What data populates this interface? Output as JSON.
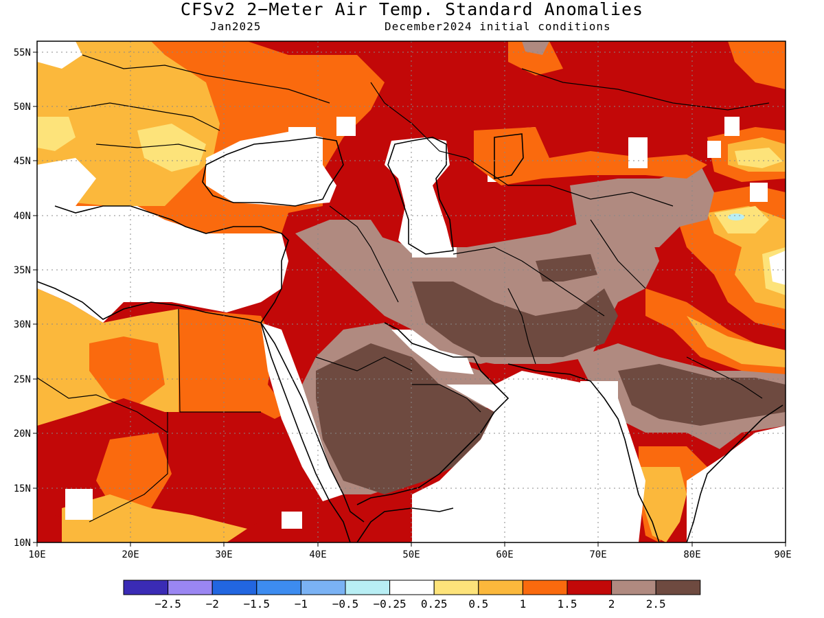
{
  "title": "CFSv2 2−Meter Air Temp. Standard Anomalies",
  "subtitle_left": "Jan2025",
  "subtitle_right": "December2024 initial conditions",
  "map": {
    "lon_range": [
      10,
      90
    ],
    "lat_range": [
      10,
      56
    ],
    "lat_ticks": [
      "10N",
      "15N",
      "20N",
      "25N",
      "30N",
      "35N",
      "40N",
      "45N",
      "50N",
      "55N"
    ],
    "lon_ticks": [
      "10E",
      "20E",
      "30E",
      "40E",
      "50E",
      "60E",
      "70E",
      "80E",
      "90E"
    ],
    "grid": "dotted",
    "colors": {
      "lt_-2.5": "#3a2bb5",
      "-2.5_-2": "#9a86f2",
      "-2_-1.5": "#2266e0",
      "-1.5_-1": "#3d8cf0",
      "-1_-0.5": "#7ab2f4",
      "-0.5_-0.25": "#b8eef4",
      "-0.25_0.25": "#ffffff",
      "0.25_0.5": "#fde37a",
      "0.5_1": "#fbb83c",
      "1_1.5": "#fa6a0e",
      "1.5_2": "#c20808",
      "2_2.5": "#b08a80",
      "gt_2.5": "#6e4a40"
    }
  },
  "colorbar": {
    "colors": [
      "#3a2bb5",
      "#9a86f2",
      "#2266e0",
      "#3d8cf0",
      "#7ab2f4",
      "#b8eef4",
      "#ffffff",
      "#fde37a",
      "#fbb83c",
      "#fa6a0e",
      "#c20808",
      "#b08a80",
      "#6e4a40"
    ],
    "labels": [
      "−2.5",
      "−2",
      "−1.5",
      "−1",
      "−0.5",
      "−0.25",
      "0.25",
      "0.5",
      "1",
      "1.5",
      "2",
      "2.5"
    ]
  }
}
